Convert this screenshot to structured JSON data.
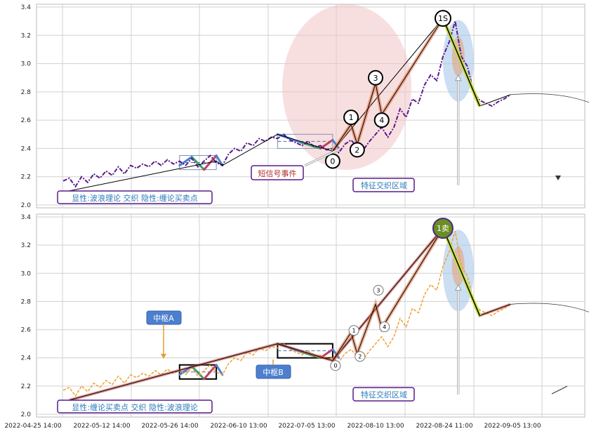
{
  "chart_data": {
    "type": "line",
    "x_tick_labels": [
      "2022-04-25 14:00",
      "2022-05-12 14:00",
      "2022-05-26 14:00",
      "2022-06-10 13:00",
      "2022-07-05 13:00",
      "2022-08-10 13:00",
      "2022-08-24 11:00",
      "2022-09-05 13:00"
    ],
    "y_ticks": [
      2.0,
      2.2,
      2.4,
      2.6,
      2.8,
      3.0,
      3.2,
      3.4
    ],
    "ylim": [
      1.98,
      3.42
    ],
    "xlim": [
      0,
      80
    ],
    "grid": true,
    "colors": {
      "top_price": "#5a1a8c",
      "bottom_price": "#f0a030",
      "wave": "#000000",
      "highlight_ellipse": "#f2c4c4",
      "blue_ellipse": "#a8c8ea",
      "label_border": "#5a1a8c",
      "label_text_blue": "#2a7ab8",
      "label_text_red": "#b03030",
      "zhongshu_label_bg": "#4d7fcf",
      "sell_circle": "#6b8e23"
    },
    "panels": [
      {
        "name": "top",
        "price_series": [
          [
            0,
            2.17
          ],
          [
            1,
            2.19
          ],
          [
            2,
            2.13
          ],
          [
            3,
            2.2
          ],
          [
            4,
            2.16
          ],
          [
            5,
            2.22
          ],
          [
            6,
            2.19
          ],
          [
            7,
            2.24
          ],
          [
            8,
            2.21
          ],
          [
            9,
            2.27
          ],
          [
            10,
            2.22
          ],
          [
            11,
            2.28
          ],
          [
            12,
            2.26
          ],
          [
            13,
            2.29
          ],
          [
            14,
            2.27
          ],
          [
            15,
            2.31
          ],
          [
            16,
            2.28
          ],
          [
            17,
            2.32
          ],
          [
            18,
            2.29
          ],
          [
            19,
            2.31
          ],
          [
            20,
            2.28
          ],
          [
            21,
            2.33
          ],
          [
            22,
            2.27
          ],
          [
            23,
            2.31
          ],
          [
            24,
            2.35
          ],
          [
            25,
            2.3
          ],
          [
            26,
            2.28
          ],
          [
            27,
            2.36
          ],
          [
            28,
            2.4
          ],
          [
            29,
            2.38
          ],
          [
            30,
            2.44
          ],
          [
            31,
            2.42
          ],
          [
            32,
            2.47
          ],
          [
            33,
            2.45
          ],
          [
            34,
            2.48
          ],
          [
            35,
            2.47
          ],
          [
            36,
            2.5
          ],
          [
            37,
            2.46
          ],
          [
            38,
            2.44
          ],
          [
            39,
            2.42
          ],
          [
            40,
            2.45
          ],
          [
            41,
            2.41
          ],
          [
            42,
            2.42
          ],
          [
            43,
            2.39
          ],
          [
            44,
            2.4
          ],
          [
            45,
            2.37
          ],
          [
            46,
            2.43
          ],
          [
            47,
            2.46
          ],
          [
            48,
            2.41
          ],
          [
            49,
            2.39
          ],
          [
            50,
            2.45
          ],
          [
            51,
            2.5
          ],
          [
            52,
            2.55
          ],
          [
            53,
            2.48
          ],
          [
            54,
            2.55
          ],
          [
            55,
            2.68
          ],
          [
            56,
            2.62
          ],
          [
            57,
            2.75
          ],
          [
            58,
            2.72
          ],
          [
            59,
            2.85
          ],
          [
            60,
            2.92
          ],
          [
            61,
            2.88
          ],
          [
            62,
            3.05
          ],
          [
            63,
            3.15
          ],
          [
            64,
            3.3
          ],
          [
            65,
            3.05
          ],
          [
            66,
            2.98
          ],
          [
            67,
            2.8
          ],
          [
            68,
            2.74
          ],
          [
            69,
            2.72
          ],
          [
            70,
            2.7
          ],
          [
            71,
            2.73
          ],
          [
            72,
            2.75
          ],
          [
            73,
            2.78
          ]
        ],
        "wave_line": [
          [
            1,
            2.1
          ],
          [
            25,
            2.31
          ],
          [
            26,
            2.28
          ],
          [
            35,
            2.5
          ],
          [
            44,
            2.38
          ],
          [
            62,
            3.32
          ],
          [
            68,
            2.7
          ],
          [
            73,
            2.78
          ]
        ],
        "bi_points": [
          [
            44,
            2.38
          ],
          [
            47,
            2.57
          ],
          [
            48,
            2.43
          ],
          [
            51,
            2.86
          ],
          [
            52,
            2.64
          ],
          [
            62,
            3.32
          ],
          [
            68,
            2.7
          ]
        ],
        "projection": [
          [
            73,
            2.78
          ],
          [
            79,
            2.79
          ],
          [
            85,
            2.72
          ],
          [
            91,
            2.52
          ],
          [
            95,
            2.3
          ]
        ],
        "point_labels": [
          "0",
          "1",
          "2",
          "3",
          "4",
          "1S"
        ],
        "annotation_short_signal": "短信号事件",
        "annotation_feature_zone": "特征交织区域",
        "legend_text": "显性:波浪理论 交织 隐性:缠论买卖点"
      },
      {
        "name": "bottom",
        "price_series": [
          [
            0,
            2.17
          ],
          [
            1,
            2.19
          ],
          [
            2,
            2.13
          ],
          [
            3,
            2.2
          ],
          [
            4,
            2.16
          ],
          [
            5,
            2.22
          ],
          [
            6,
            2.19
          ],
          [
            7,
            2.24
          ],
          [
            8,
            2.21
          ],
          [
            9,
            2.27
          ],
          [
            10,
            2.22
          ],
          [
            11,
            2.28
          ],
          [
            12,
            2.26
          ],
          [
            13,
            2.29
          ],
          [
            14,
            2.27
          ],
          [
            15,
            2.31
          ],
          [
            16,
            2.28
          ],
          [
            17,
            2.32
          ],
          [
            18,
            2.29
          ],
          [
            19,
            2.31
          ],
          [
            20,
            2.28
          ],
          [
            21,
            2.33
          ],
          [
            22,
            2.27
          ],
          [
            23,
            2.31
          ],
          [
            24,
            2.35
          ],
          [
            25,
            2.3
          ],
          [
            26,
            2.28
          ],
          [
            27,
            2.36
          ],
          [
            28,
            2.4
          ],
          [
            29,
            2.38
          ],
          [
            30,
            2.44
          ],
          [
            31,
            2.42
          ],
          [
            32,
            2.47
          ],
          [
            33,
            2.45
          ],
          [
            34,
            2.48
          ],
          [
            35,
            2.47
          ],
          [
            36,
            2.5
          ],
          [
            37,
            2.46
          ],
          [
            38,
            2.44
          ],
          [
            39,
            2.42
          ],
          [
            40,
            2.45
          ],
          [
            41,
            2.41
          ],
          [
            42,
            2.42
          ],
          [
            43,
            2.39
          ],
          [
            44,
            2.4
          ],
          [
            45,
            2.37
          ],
          [
            46,
            2.43
          ],
          [
            47,
            2.46
          ],
          [
            48,
            2.41
          ],
          [
            49,
            2.39
          ],
          [
            50,
            2.45
          ],
          [
            51,
            2.5
          ],
          [
            52,
            2.55
          ],
          [
            53,
            2.48
          ],
          [
            54,
            2.55
          ],
          [
            55,
            2.68
          ],
          [
            56,
            2.62
          ],
          [
            57,
            2.75
          ],
          [
            58,
            2.72
          ],
          [
            59,
            2.85
          ],
          [
            60,
            2.92
          ],
          [
            61,
            2.88
          ],
          [
            62,
            3.05
          ],
          [
            63,
            3.15
          ],
          [
            64,
            3.3
          ],
          [
            65,
            3.05
          ],
          [
            66,
            2.98
          ],
          [
            67,
            2.8
          ],
          [
            68,
            2.74
          ],
          [
            69,
            2.72
          ],
          [
            70,
            2.7
          ],
          [
            71,
            2.73
          ],
          [
            72,
            2.75
          ],
          [
            73,
            2.78
          ]
        ],
        "wave_line": [
          [
            1,
            2.1
          ],
          [
            35,
            2.5
          ],
          [
            44,
            2.38
          ],
          [
            62,
            3.32
          ],
          [
            68,
            2.7
          ],
          [
            73,
            2.78
          ]
        ],
        "bi_points": [
          [
            44,
            2.38
          ],
          [
            47,
            2.58
          ],
          [
            48,
            2.43
          ],
          [
            51,
            2.78
          ],
          [
            52,
            2.61
          ],
          [
            62,
            3.32
          ]
        ],
        "projection": [
          [
            73,
            2.78
          ],
          [
            79,
            2.79
          ],
          [
            85,
            2.72
          ],
          [
            91,
            2.52
          ],
          [
            95,
            2.3
          ]
        ],
        "point_labels": [
          "0",
          "1",
          "2",
          "3",
          "4"
        ],
        "sell_label": "1卖",
        "zhongshu_a_label": "中枢A",
        "zhongshu_b_label": "中枢B",
        "annotation_feature_zone": "特征交织区域",
        "legend_text": "显性:缠论买卖点 交织 隐性:波浪理论"
      }
    ]
  }
}
